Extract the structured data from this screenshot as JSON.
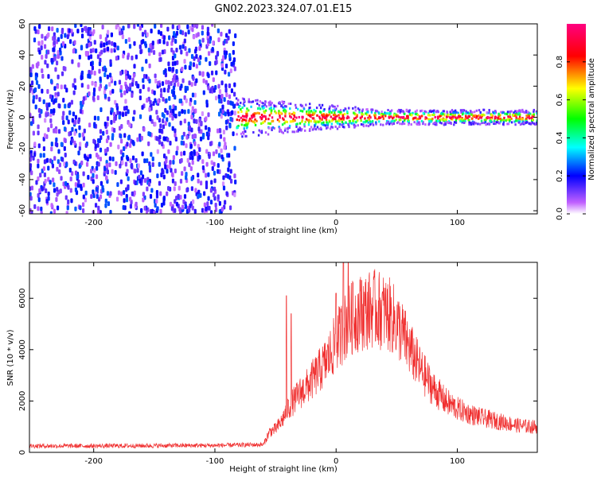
{
  "title": "GN02.2023.324.07.01.E15",
  "colors": {
    "snr_line": "#f03030",
    "axis": "#000000",
    "background": "#ffffff"
  },
  "chart_data": [
    {
      "type": "heatmap",
      "name": "spectrogram",
      "xlabel": "Height of straight line (km)",
      "ylabel": "Frequency (Hz)",
      "xlim": [
        -253,
        166
      ],
      "ylim": [
        -62,
        60
      ],
      "xticks": [
        -200,
        -100,
        0,
        100
      ],
      "yticks": [
        -60,
        -40,
        -20,
        0,
        20,
        40,
        60
      ],
      "colorbar": {
        "label": "Normalized spectral amplitude",
        "range": [
          0.0,
          1.0
        ],
        "ticks": [
          0.0,
          0.2,
          0.4,
          0.6,
          0.8
        ],
        "colormap": "rainbow (white/violet low → blue → cyan → green → yellow → red → magenta high)"
      },
      "regions": [
        {
          "x_range": [
            -253,
            -83
          ],
          "freq_range": [
            -62,
            60
          ],
          "amplitude": "low (0.0–0.3), broadband noise"
        },
        {
          "x_range": [
            -83,
            166
          ],
          "freq_center": 0,
          "freq_halfwidth": [
            3,
            8
          ],
          "amplitude": "high (0.7–1.0) narrow band near 0 Hz"
        }
      ],
      "grid": false
    },
    {
      "type": "line",
      "name": "snr",
      "xlabel": "Height of straight line (km)",
      "ylabel": "SNR (10 * v/v)",
      "xlim": [
        -253,
        166
      ],
      "ylim": [
        0,
        7400
      ],
      "xticks": [
        -200,
        -100,
        0,
        100
      ],
      "yticks": [
        0,
        2000,
        4000,
        6000
      ],
      "grid": false,
      "series": [
        {
          "x": [
            -253,
            -200,
            -150,
            -100,
            -75,
            -60,
            -55,
            -50,
            -45,
            -40,
            -35,
            -30,
            -25,
            -20,
            -15,
            -10,
            -5,
            0,
            5,
            10,
            15,
            20,
            25,
            30,
            35,
            40,
            45,
            50,
            55,
            60,
            70,
            80,
            90,
            100,
            110,
            120,
            130,
            140,
            150,
            160,
            166
          ],
          "y": [
            250,
            250,
            260,
            270,
            290,
            300,
            800,
            900,
            1200,
            1700,
            2000,
            2300,
            2500,
            2800,
            3100,
            3400,
            3800,
            4300,
            4700,
            5100,
            5300,
            5450,
            5500,
            5600,
            5550,
            5450,
            5300,
            5000,
            4600,
            4100,
            3200,
            2500,
            2000,
            1700,
            1500,
            1350,
            1250,
            1150,
            1050,
            1000,
            1000
          ],
          "spikes": [
            [
              -41,
              6100
            ],
            [
              -37,
              5400
            ],
            [
              6,
              7400
            ],
            [
              10,
              7400
            ],
            [
              14,
              6600
            ],
            [
              21,
              6700
            ],
            [
              0,
              6200
            ]
          ]
        }
      ]
    }
  ]
}
